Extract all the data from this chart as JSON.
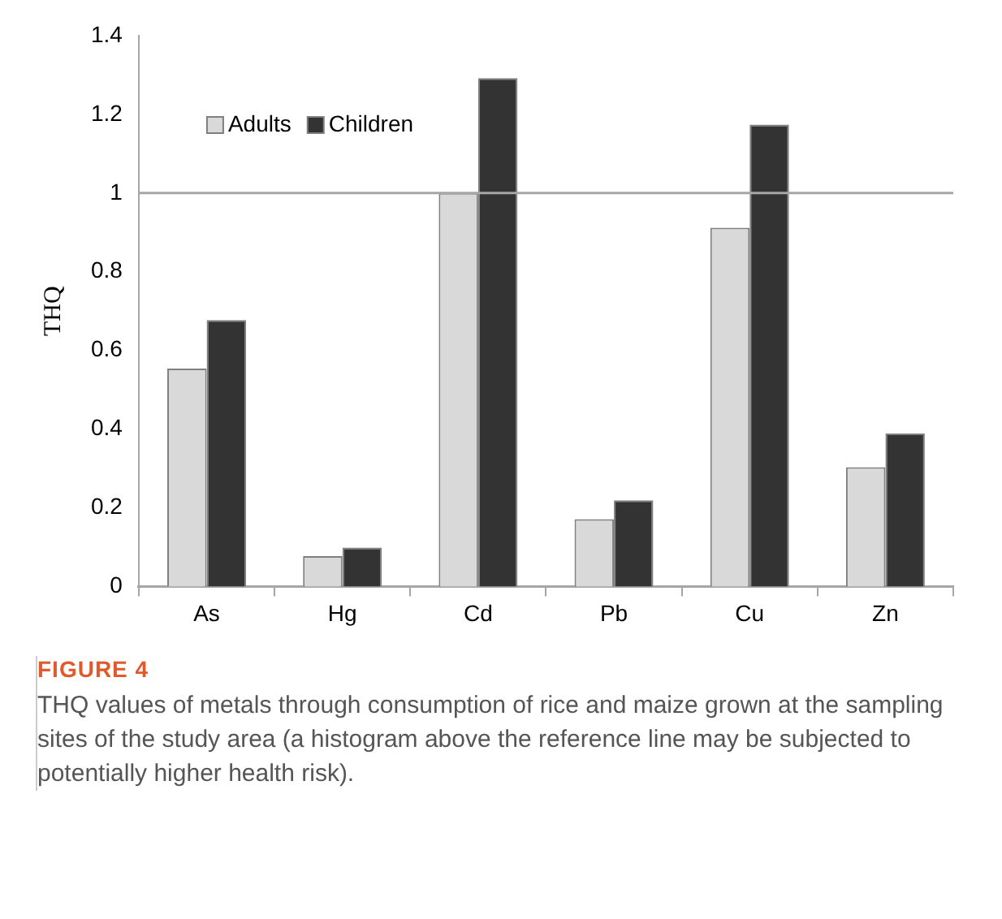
{
  "chart_data": {
    "type": "bar",
    "ylabel": "THQ",
    "categories": [
      "As",
      "Hg",
      "Cd",
      "Pb",
      "Cu",
      "Zn"
    ],
    "series": [
      {
        "name": "Adults",
        "color": "#d9d9d9",
        "values": [
          0.554,
          0.077,
          1.0,
          0.171,
          0.912,
          0.303
        ]
      },
      {
        "name": "Children",
        "color": "#333333",
        "values": [
          0.677,
          0.099,
          1.292,
          0.219,
          1.174,
          0.389
        ]
      }
    ],
    "ylim": [
      0,
      1.4
    ],
    "yticks": [
      0,
      0.2,
      0.4,
      0.6,
      0.8,
      1,
      1.2,
      1.4
    ],
    "grid": false,
    "legend": "top left",
    "ref_lines": [
      {
        "axis": "y",
        "value": 1,
        "color": "#a6a6a6"
      }
    ],
    "annotations": [
      "FIGURE 4",
      "THQ values of metals through consumption of rice and maize grown at the sampling sites of the study area (a histogram above the reference line may be subjected to potentially higher health risk)."
    ]
  }
}
